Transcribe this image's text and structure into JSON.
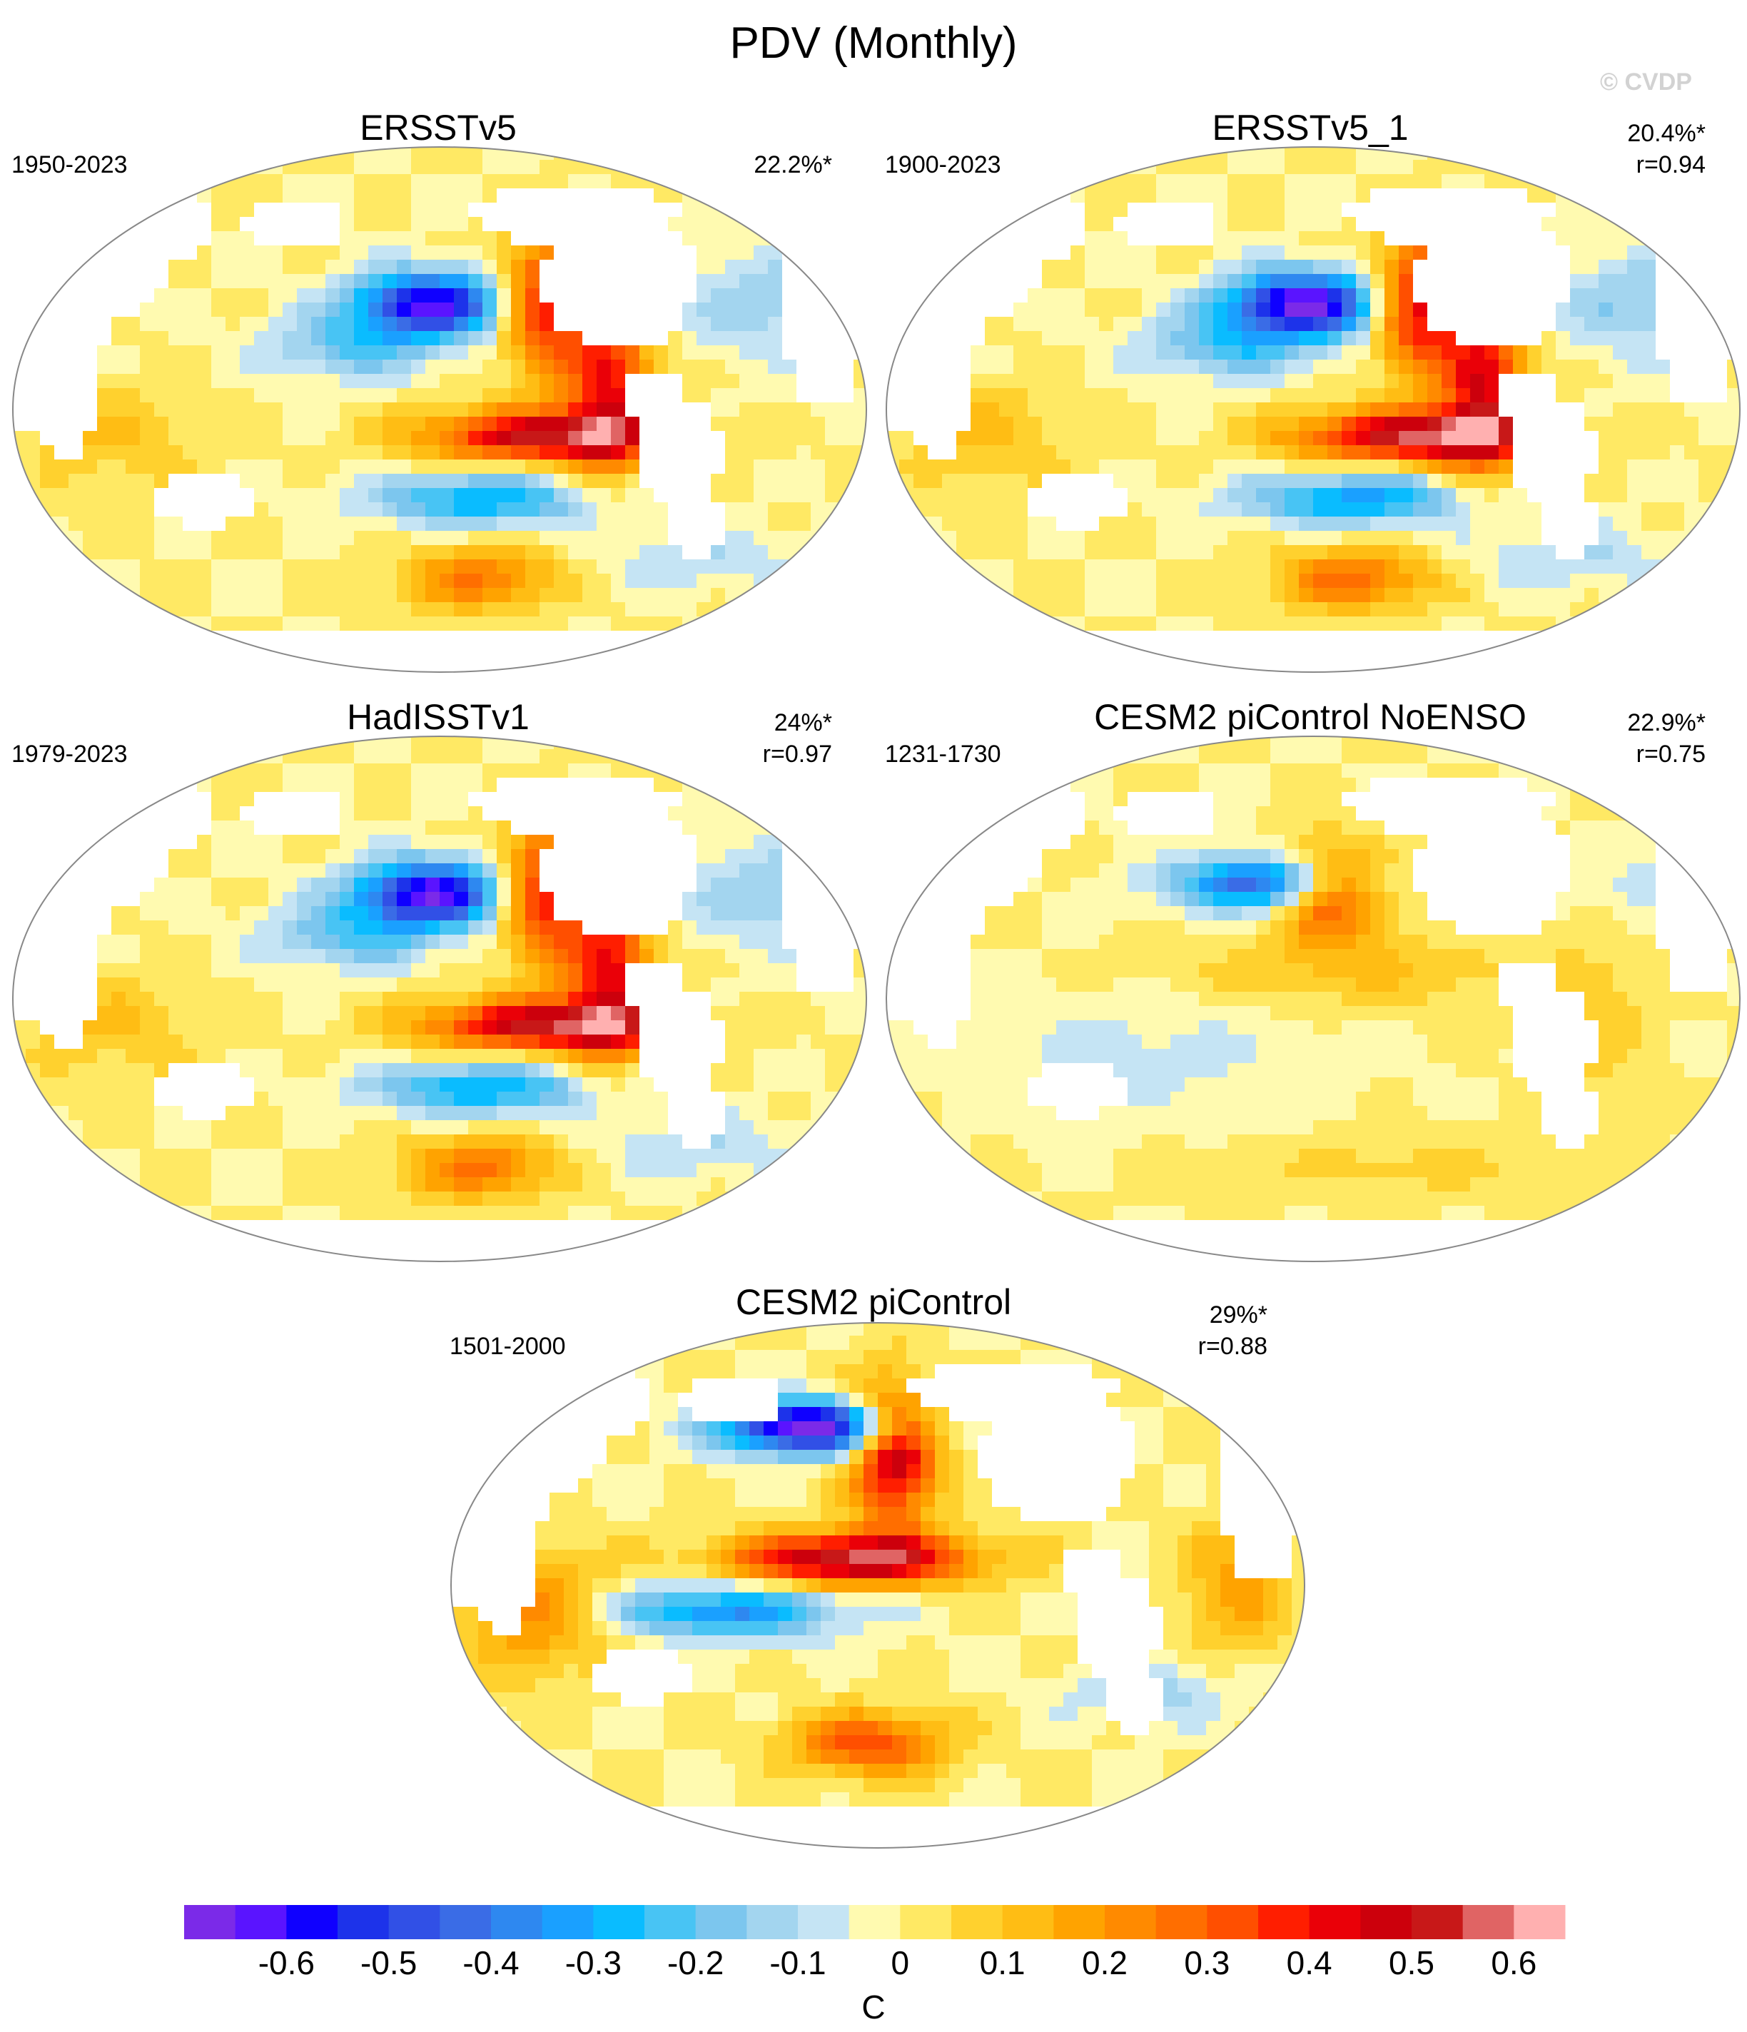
{
  "figure": {
    "title": "PDV (Monthly)",
    "watermark": "© CVDP"
  },
  "panels": [
    {
      "id": "ersstv5",
      "title": "ERSSTv5",
      "period": "1950-2023",
      "pct": "22.2%*",
      "r": "",
      "pattern": "obs",
      "amp": 1.0
    },
    {
      "id": "ersstv5_1",
      "title": "ERSSTv5_1",
      "period": "1900-2023",
      "pct": "20.4%*",
      "r": "r=0.94",
      "pattern": "obs",
      "amp": 1.08
    },
    {
      "id": "hadisstv1",
      "title": "HadISSTv1",
      "period": "1979-2023",
      "pct": "24%*",
      "r": "r=0.97",
      "pattern": "obs",
      "amp": 1.02
    },
    {
      "id": "cesm2_noenso",
      "title": "CESM2 piControl NoENSO",
      "period": "1231-1730",
      "pct": "22.9%*",
      "r": "r=0.75",
      "pattern": "noenso",
      "amp": 0.85
    },
    {
      "id": "cesm2",
      "title": "CESM2 piControl",
      "period": "1501-2000",
      "pct": "29%*",
      "r": "r=0.88",
      "pattern": "model",
      "amp": 1.1
    }
  ],
  "colorbar": {
    "unit": "C",
    "levels": [
      -0.7,
      -0.65,
      -0.6,
      -0.55,
      -0.5,
      -0.45,
      -0.4,
      -0.35,
      -0.3,
      -0.25,
      -0.2,
      -0.15,
      -0.1,
      -0.05,
      0,
      0.05,
      0.1,
      0.15,
      0.2,
      0.25,
      0.3,
      0.35,
      0.4,
      0.45,
      0.5,
      0.55,
      0.6,
      0.65,
      0.7
    ],
    "colors": [
      "#7b2ae8",
      "#5a14ff",
      "#0f00ff",
      "#1d33ea",
      "#3150e6",
      "#3a6ce6",
      "#2e88f0",
      "#1aa0ff",
      "#0abcff",
      "#48c4f4",
      "#7cc6ee",
      "#a3d5ef",
      "#c5e4f4",
      "#fffab0",
      "#ffe964",
      "#ffd12e",
      "#ffbd14",
      "#ffa300",
      "#ff8a00",
      "#ff6e00",
      "#ff4f00",
      "#ff1e00",
      "#ea0008",
      "#cc000c",
      "#c81818",
      "#e06464",
      "#ffb0b0"
    ],
    "tick_labels": [
      "-0.6",
      "-0.5",
      "-0.4",
      "-0.3",
      "-0.2",
      "-0.1",
      "0",
      "0.1",
      "0.2",
      "0.3",
      "0.4",
      "0.5",
      "0.6"
    ],
    "tick_values": [
      -0.6,
      -0.5,
      -0.4,
      -0.3,
      -0.2,
      -0.1,
      0,
      0.1,
      0.2,
      0.3,
      0.4,
      0.5,
      0.6
    ]
  }
}
